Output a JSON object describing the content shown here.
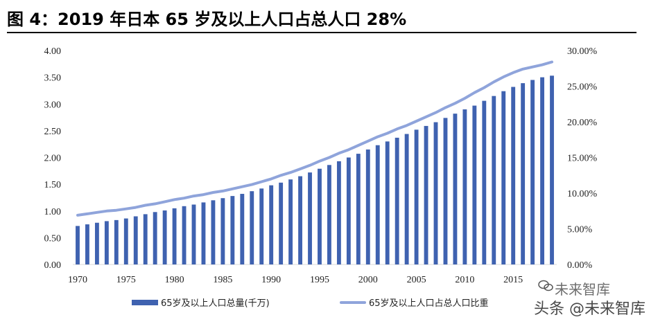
{
  "title": "图 4：2019 年日本 65 岁及以上人口占总人口 28%",
  "watermark": {
    "line1": "未来智库",
    "line2": "头条 @未来智库"
  },
  "colors": {
    "bar": "#3f62b0",
    "line": "#8fa4db",
    "axis": "#d9d9d9",
    "text": "#222222"
  },
  "chart_data": {
    "type": "bar+line",
    "x": [
      1970,
      1971,
      1972,
      1973,
      1974,
      1975,
      1976,
      1977,
      1978,
      1979,
      1980,
      1981,
      1982,
      1983,
      1984,
      1985,
      1986,
      1987,
      1988,
      1989,
      1990,
      1991,
      1992,
      1993,
      1994,
      1995,
      1996,
      1997,
      1998,
      1999,
      2000,
      2001,
      2002,
      2003,
      2004,
      2005,
      2006,
      2007,
      2008,
      2009,
      2010,
      2011,
      2012,
      2013,
      2014,
      2015,
      2016,
      2017,
      2018,
      2019
    ],
    "x_tick_labels": [
      "1970",
      "1975",
      "1980",
      "1985",
      "1990",
      "1995",
      "2000",
      "2005",
      "2010",
      "2015"
    ],
    "x_tick_values": [
      1970,
      1975,
      1980,
      1985,
      1990,
      1995,
      2000,
      2005,
      2010,
      2015
    ],
    "y_left": {
      "ylim": [
        0,
        4.0
      ],
      "ticks": [
        "0.00",
        "0.50",
        "1.00",
        "1.50",
        "2.00",
        "2.50",
        "3.00",
        "3.50",
        "4.00"
      ]
    },
    "y_right": {
      "ylim": [
        0,
        30
      ],
      "ticks": [
        "0.00%",
        "5.00%",
        "10.00%",
        "15.00%",
        "20.00%",
        "25.00%",
        "30.00%"
      ]
    },
    "legend_position": "bottom",
    "series": [
      {
        "name": "65岁及以上人口总量(千万)",
        "kind": "bar",
        "axis": "left",
        "values": [
          0.72,
          0.75,
          0.78,
          0.81,
          0.83,
          0.86,
          0.9,
          0.94,
          0.98,
          1.01,
          1.05,
          1.09,
          1.12,
          1.16,
          1.2,
          1.24,
          1.28,
          1.32,
          1.37,
          1.42,
          1.48,
          1.53,
          1.59,
          1.65,
          1.72,
          1.79,
          1.86,
          1.93,
          2.0,
          2.07,
          2.15,
          2.23,
          2.3,
          2.37,
          2.44,
          2.52,
          2.59,
          2.66,
          2.74,
          2.82,
          2.9,
          2.97,
          3.06,
          3.15,
          3.24,
          3.32,
          3.39,
          3.45,
          3.5,
          3.53
        ]
      },
      {
        "name": "65岁及以上人口占总人口比重",
        "kind": "line",
        "axis": "right",
        "values": [
          6.9,
          7.1,
          7.3,
          7.5,
          7.6,
          7.8,
          8.0,
          8.3,
          8.5,
          8.8,
          9.1,
          9.3,
          9.6,
          9.8,
          10.1,
          10.3,
          10.6,
          10.9,
          11.2,
          11.6,
          12.0,
          12.5,
          12.9,
          13.4,
          13.9,
          14.5,
          15.0,
          15.6,
          16.1,
          16.7,
          17.3,
          17.9,
          18.4,
          19.0,
          19.5,
          20.1,
          20.7,
          21.3,
          22.0,
          22.6,
          23.3,
          24.1,
          24.8,
          25.6,
          26.3,
          26.9,
          27.4,
          27.7,
          28.0,
          28.4
        ]
      }
    ]
  }
}
